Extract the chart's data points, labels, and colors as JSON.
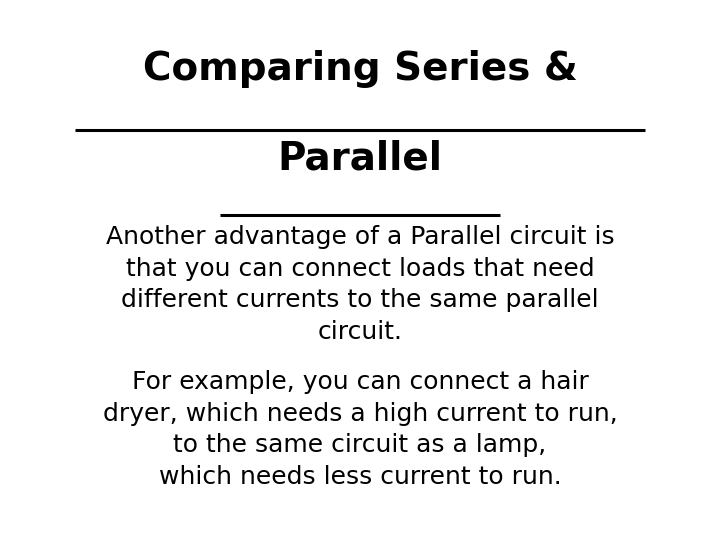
{
  "title_line1": "Comparing Series &",
  "title_line2": "Parallel",
  "body_text1": "Another advantage of a Parallel circuit is\nthat you can connect loads that need\ndifferent currents to the same parallel\ncircuit.",
  "body_text2": "For example, you can connect a hair\ndryer, which needs a high current to run,\nto the same circuit as a lamp,\nwhich needs less current to run.",
  "background_color": "#ffffff",
  "text_color": "#000000",
  "title_fontsize": 28,
  "body_fontsize": 18,
  "title_family": "Arial",
  "body_family": "Arial"
}
